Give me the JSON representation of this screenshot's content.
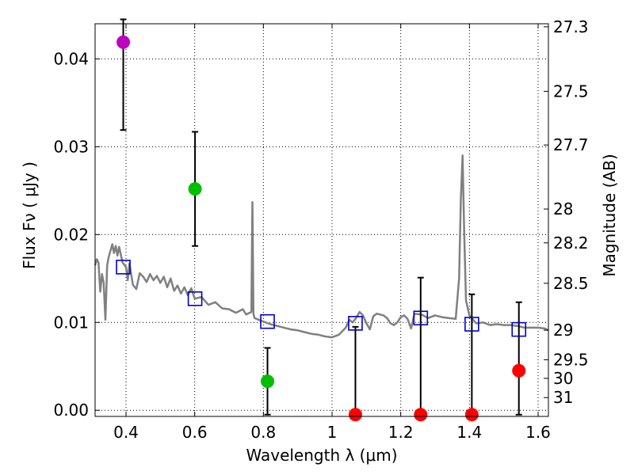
{
  "chart_data": {
    "type": "scatter",
    "xlabel": "Wavelength  λ (μm)",
    "ylabel": "Flux  Fν  ( μJy )",
    "ylabel2": "Magnitude (AB)",
    "xlim": [
      0.31,
      1.63
    ],
    "ylim": [
      -0.0007,
      0.044
    ],
    "grid": true,
    "x_ticks": [
      0.4,
      0.6,
      0.8,
      1.0,
      1.2,
      1.4,
      1.6
    ],
    "x_tick_labels": [
      "0.4",
      "0.6",
      "0.8",
      "1",
      "1.2",
      "1.4",
      "1.6"
    ],
    "y_ticks": [
      0.0,
      0.01,
      0.02,
      0.03,
      0.04
    ],
    "y_tick_labels": [
      "0.00",
      "0.01",
      "0.02",
      "0.03",
      "0.04"
    ],
    "mag_ticks": [
      27.3,
      27.5,
      27.7,
      28,
      28.2,
      28.5,
      29,
      29.5,
      30,
      31
    ],
    "mag_tick_labels": [
      "27.3",
      "27.5",
      "27.7",
      "28",
      "28.2",
      "28.5",
      "29",
      "29.5",
      "30",
      "31"
    ],
    "observed": [
      {
        "x": 0.392,
        "y": 0.0419,
        "yerr_low": 0.0319,
        "yerr_high": 0.0445,
        "color": "#bf00bf"
      },
      {
        "x": 0.601,
        "y": 0.0252,
        "yerr_low": 0.0187,
        "yerr_high": 0.0317,
        "color": "#00bf00"
      },
      {
        "x": 0.812,
        "y": 0.0033,
        "yerr_low": -0.0005,
        "yerr_high": 0.0071,
        "color": "#00bf00"
      },
      {
        "x": 1.068,
        "y": -0.0005,
        "yerr_low": -0.0005,
        "yerr_high": 0.0095,
        "color": "#ff0000"
      },
      {
        "x": 1.258,
        "y": -0.0005,
        "yerr_low": -0.0005,
        "yerr_high": 0.0151,
        "color": "#ff0000"
      },
      {
        "x": 1.407,
        "y": -0.0005,
        "yerr_low": -0.0005,
        "yerr_high": 0.0132,
        "color": "#ff0000"
      },
      {
        "x": 1.544,
        "y": 0.0045,
        "yerr_low": -0.0005,
        "yerr_high": 0.0123,
        "color": "#ff0000"
      }
    ],
    "model_photometry": {
      "x": [
        0.392,
        0.601,
        0.812,
        1.068,
        1.258,
        1.407,
        1.544
      ],
      "y": [
        0.0163,
        0.0127,
        0.0101,
        0.0099,
        0.0105,
        0.0098,
        0.0092
      ],
      "color": "#0000cc"
    },
    "sed_model": {
      "color": "#808080",
      "x": [
        0.31,
        0.315,
        0.32,
        0.325,
        0.33,
        0.335,
        0.34,
        0.345,
        0.35,
        0.355,
        0.36,
        0.365,
        0.37,
        0.375,
        0.38,
        0.39,
        0.4,
        0.405,
        0.41,
        0.42,
        0.43,
        0.44,
        0.45,
        0.46,
        0.47,
        0.48,
        0.49,
        0.5,
        0.51,
        0.52,
        0.53,
        0.54,
        0.55,
        0.56,
        0.57,
        0.58,
        0.59,
        0.6,
        0.62,
        0.64,
        0.66,
        0.68,
        0.7,
        0.72,
        0.74,
        0.75,
        0.76,
        0.765,
        0.768,
        0.771,
        0.774,
        0.78,
        0.8,
        0.82,
        0.84,
        0.86,
        0.88,
        0.9,
        0.92,
        0.94,
        0.96,
        0.98,
        1.0,
        1.02,
        1.04,
        1.05,
        1.06,
        1.07,
        1.08,
        1.09,
        1.1,
        1.11,
        1.12,
        1.13,
        1.14,
        1.15,
        1.16,
        1.17,
        1.18,
        1.19,
        1.2,
        1.21,
        1.22,
        1.23,
        1.24,
        1.26,
        1.28,
        1.3,
        1.32,
        1.34,
        1.36,
        1.37,
        1.375,
        1.38,
        1.385,
        1.39,
        1.4,
        1.42,
        1.44,
        1.46,
        1.48,
        1.5,
        1.52,
        1.54,
        1.56,
        1.58,
        1.6,
        1.62,
        1.63
      ],
      "y": [
        0.0165,
        0.0172,
        0.0168,
        0.0135,
        0.0155,
        0.0145,
        0.0103,
        0.0165,
        0.0175,
        0.0182,
        0.0189,
        0.0179,
        0.0187,
        0.0176,
        0.0186,
        0.0168,
        0.0163,
        0.0148,
        0.0167,
        0.0143,
        0.0138,
        0.0156,
        0.0152,
        0.0146,
        0.0155,
        0.0148,
        0.0153,
        0.0145,
        0.0152,
        0.014,
        0.015,
        0.0136,
        0.0142,
        0.0133,
        0.014,
        0.0131,
        0.0139,
        0.0127,
        0.0129,
        0.012,
        0.0123,
        0.0116,
        0.0115,
        0.0111,
        0.0115,
        0.0109,
        0.0111,
        0.0112,
        0.0237,
        0.011,
        0.0105,
        0.0104,
        0.0101,
        0.0098,
        0.0096,
        0.0094,
        0.0092,
        0.0091,
        0.0089,
        0.0087,
        0.0086,
        0.0084,
        0.0083,
        0.0086,
        0.0094,
        0.0103,
        0.01,
        0.0105,
        0.0112,
        0.0108,
        0.0099,
        0.0092,
        0.0107,
        0.011,
        0.0109,
        0.0108,
        0.0105,
        0.0099,
        0.0097,
        0.01,
        0.0106,
        0.0108,
        0.0104,
        0.0093,
        0.011,
        0.0109,
        0.0105,
        0.0108,
        0.0106,
        0.0105,
        0.0104,
        0.015,
        0.024,
        0.029,
        0.02,
        0.0125,
        0.0108,
        0.0099,
        0.01,
        0.0097,
        0.0098,
        0.0097,
        0.0097,
        0.0096,
        0.0094,
        0.0094,
        0.0094,
        0.0093,
        0.0091
      ]
    }
  }
}
